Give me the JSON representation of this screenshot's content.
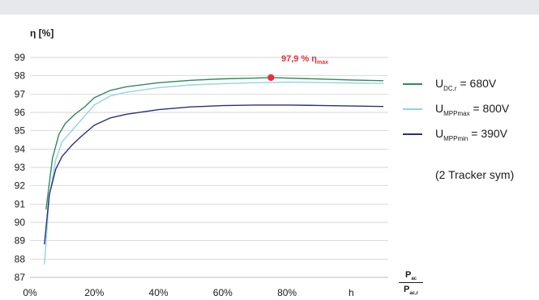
{
  "chart_data": {
    "type": "line",
    "ylabel": "η [%]",
    "ylim": [
      87,
      99
    ],
    "xlim": [
      0,
      110
    ],
    "yticks": [
      "87",
      "88",
      "89",
      "90",
      "91",
      "92",
      "93",
      "94",
      "95",
      "96",
      "97",
      "98",
      "99"
    ],
    "xticks": [
      {
        "value": 0,
        "label": "0%"
      },
      {
        "value": 20,
        "label": "20%"
      },
      {
        "value": 40,
        "label": "40%"
      },
      {
        "value": 60,
        "label": "60%"
      },
      {
        "value": 80,
        "label": "80%"
      },
      {
        "value": 100,
        "label": "h"
      }
    ],
    "x_axis_label": {
      "numerator": "P",
      "numerator_sub": "ac",
      "denominator": "P",
      "denominator_sub": "ac,r"
    },
    "grid": "horizontal",
    "legend_position": "right",
    "series": [
      {
        "name": "U_DC,r = 680V",
        "legend_main": "U",
        "legend_sub": "DC,r",
        "legend_value": " = 680V",
        "color": "#2e8b57",
        "points": [
          [
            5,
            90.7
          ],
          [
            7,
            93.5
          ],
          [
            9,
            94.8
          ],
          [
            11,
            95.4
          ],
          [
            14,
            95.9
          ],
          [
            17,
            96.3
          ],
          [
            20,
            96.8
          ],
          [
            25,
            97.2
          ],
          [
            30,
            97.4
          ],
          [
            40,
            97.62
          ],
          [
            50,
            97.75
          ],
          [
            60,
            97.83
          ],
          [
            70,
            97.87
          ],
          [
            75,
            97.9
          ],
          [
            80,
            97.87
          ],
          [
            90,
            97.82
          ],
          [
            100,
            97.77
          ],
          [
            110,
            97.73
          ]
        ]
      },
      {
        "name": "U_MPPmax = 800V",
        "legend_main": "U",
        "legend_sub": "MPPmax",
        "legend_value": " = 800V",
        "color": "#8fd3ea",
        "points": [
          [
            4.5,
            87.7
          ],
          [
            6,
            91.4
          ],
          [
            8,
            93.4
          ],
          [
            10,
            94.4
          ],
          [
            13,
            95.0
          ],
          [
            16,
            95.6
          ],
          [
            20,
            96.4
          ],
          [
            25,
            96.9
          ],
          [
            30,
            97.1
          ],
          [
            40,
            97.35
          ],
          [
            50,
            97.5
          ],
          [
            60,
            97.57
          ],
          [
            70,
            97.62
          ],
          [
            80,
            97.65
          ],
          [
            90,
            97.63
          ],
          [
            100,
            97.6
          ],
          [
            110,
            97.58
          ]
        ]
      },
      {
        "name": "U_MPPmin = 390V",
        "legend_main": "U",
        "legend_sub": "MPPmin",
        "legend_value": " = 390V",
        "note": "(2 Tracker sym)",
        "color": "#2b2f7e",
        "points": [
          [
            4.5,
            88.8
          ],
          [
            6,
            91.5
          ],
          [
            8,
            92.9
          ],
          [
            10,
            93.6
          ],
          [
            13,
            94.2
          ],
          [
            16,
            94.7
          ],
          [
            20,
            95.3
          ],
          [
            25,
            95.7
          ],
          [
            30,
            95.9
          ],
          [
            40,
            96.15
          ],
          [
            50,
            96.3
          ],
          [
            60,
            96.37
          ],
          [
            70,
            96.4
          ],
          [
            80,
            96.4
          ],
          [
            90,
            96.38
          ],
          [
            100,
            96.35
          ],
          [
            110,
            96.32
          ]
        ]
      }
    ],
    "annotation": {
      "x": 75,
      "y": 97.9,
      "text": "97,9 % η",
      "sub": "max",
      "color": "#e8303f"
    }
  }
}
